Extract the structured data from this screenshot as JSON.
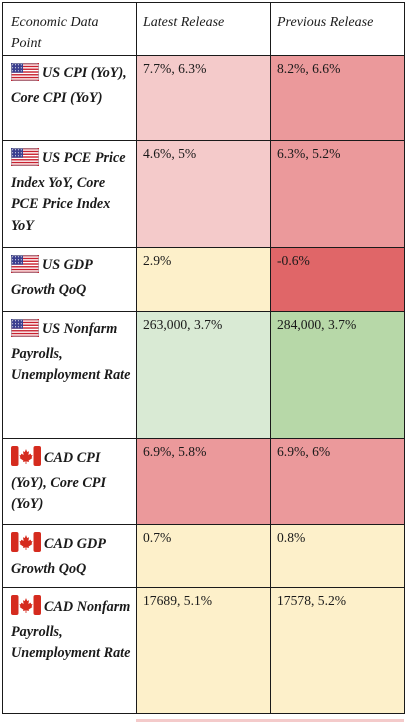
{
  "colors": {
    "border": "#1a1a1a",
    "light_red": "#f4caca",
    "mid_red": "#eb999b",
    "strong_red": "#e06668",
    "light_yellow": "#fdf0ca",
    "light_green": "#d9ead4",
    "mid_green": "#b7d8a8",
    "white": "#ffffff"
  },
  "table": {
    "headers": [
      "Economic Data Point",
      "Latest Release",
      "Previous Release"
    ],
    "rows": [
      {
        "flag": "us-flag-icon",
        "name": "US CPI (YoY), Core CPI (YoY)",
        "latest": "7.7%, 6.3%",
        "previous": "8.2%, 6.6%",
        "latest_color": "#f4caca",
        "previous_color": "#eb999b"
      },
      {
        "flag": "us-flag-icon",
        "name": "US PCE Price Index YoY, Core PCE Price Index YoY",
        "latest": "4.6%, 5%",
        "previous": "6.3%, 5.2%",
        "latest_color": "#f4caca",
        "previous_color": "#eb999b"
      },
      {
        "flag": "us-flag-icon",
        "name": "US GDP Growth QoQ",
        "latest": "2.9%",
        "previous": "-0.6%",
        "latest_color": "#fdf0ca",
        "previous_color": "#e06668"
      },
      {
        "flag": "us-flag-icon",
        "name": "US Nonfarm Payrolls, Unemployment Rate",
        "latest": "263,000, 3.7%",
        "previous": "284,000, 3.7%",
        "latest_color": "#d9ead4",
        "previous_color": "#b7d8a8"
      },
      {
        "flag": "canada-flag-icon",
        "name": "CAD CPI (YoY), Core CPI (YoY)",
        "latest": "6.9%, 5.8%",
        "previous": "6.9%, 6%",
        "latest_color": "#eb999b",
        "previous_color": "#eb999b"
      },
      {
        "flag": "canada-flag-icon",
        "name": "CAD GDP Growth QoQ",
        "latest": "0.7%",
        "previous": "0.8%",
        "latest_color": "#fdf0ca",
        "previous_color": "#fdf0ca"
      },
      {
        "flag": "canada-flag-icon",
        "name": "CAD Nonfarm Payrolls, Unemployment Rate",
        "latest": "17689, 5.1%",
        "previous": "17578, 5.2%",
        "latest_color": "#fdf0ca",
        "previous_color": "#fdf0ca"
      }
    ]
  }
}
